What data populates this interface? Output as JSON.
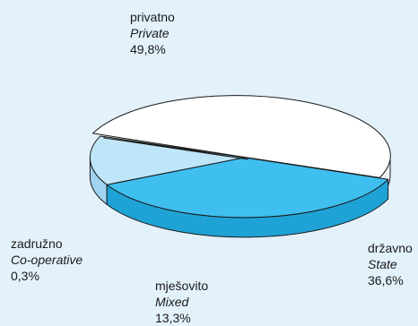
{
  "colors": {
    "background": "#e3f1fb",
    "outline": "#1a1a1a"
  },
  "chart_data": {
    "type": "pie",
    "style": "3d-exploded",
    "slices": [
      {
        "key": "private",
        "label_hr": "privatno",
        "label_en": "Private",
        "percent_text": "49,8%",
        "value": 49.8,
        "color": "#ffffff",
        "side_color": "#f4f4f4"
      },
      {
        "key": "state",
        "label_hr": "državno",
        "label_en": "State",
        "percent_text": "36,6%",
        "value": 36.6,
        "color": "#3fbfef",
        "side_color": "#1fa3d6"
      },
      {
        "key": "mixed",
        "label_hr": "mješovito",
        "label_en": "Mixed",
        "percent_text": "13,3%",
        "value": 13.3,
        "color": "#bfe5f8",
        "side_color": "#9fd3ef"
      },
      {
        "key": "coop",
        "label_hr": "zadružno",
        "label_en": "Co-operative",
        "percent_text": "0,3%",
        "value": 0.3,
        "color": "#f2f2f2",
        "side_color": "#d9d9d9"
      }
    ]
  }
}
